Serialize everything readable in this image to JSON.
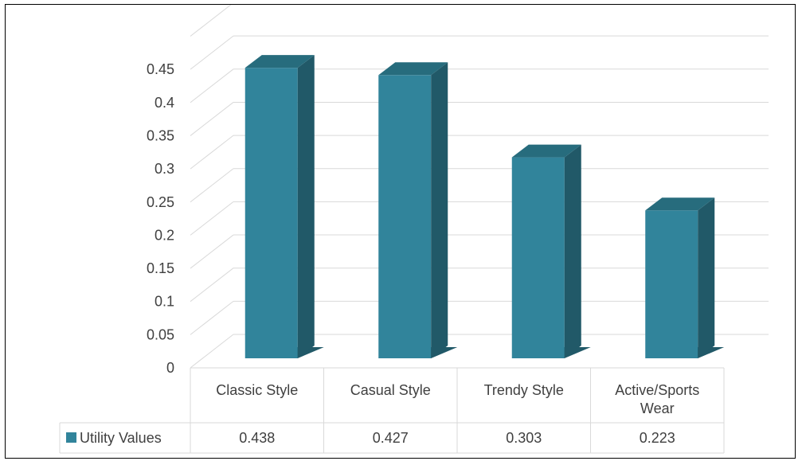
{
  "chart_data": {
    "type": "bar",
    "style": "3d-column-with-data-table",
    "title": "",
    "xlabel": "",
    "ylabel": "",
    "categories": [
      [
        "Classic Style"
      ],
      [
        "Casual Style"
      ],
      [
        "Trendy Style"
      ],
      [
        "Active/Sports",
        "Wear"
      ]
    ],
    "series": [
      {
        "name": "Utility Values",
        "values": [
          0.438,
          0.427,
          0.303,
          0.223
        ],
        "color": "#31849B"
      }
    ],
    "value_labels": [
      "0.438",
      "0.427",
      "0.303",
      "0.223"
    ],
    "yticks": [
      "0",
      "0.05",
      "0.1",
      "0.15",
      "0.2",
      "0.25",
      "0.3",
      "0.35",
      "0.4",
      "0.45"
    ],
    "ylim": [
      0,
      0.5
    ],
    "grid": true,
    "legend": "data-table"
  },
  "colors": {
    "front": "#31849B",
    "side": "#215968",
    "top": "#276C7D",
    "grid": "#d9d9d9",
    "text": "#404040"
  }
}
